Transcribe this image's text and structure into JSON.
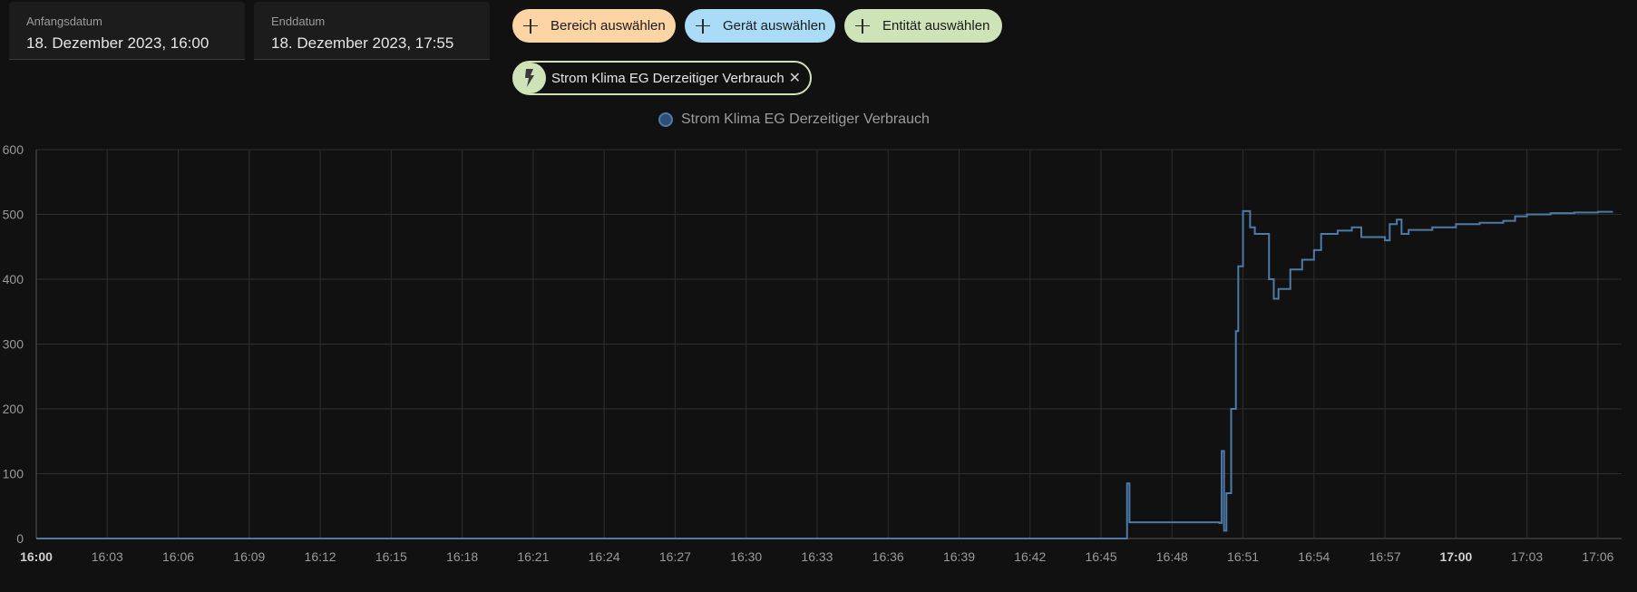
{
  "date_range": {
    "start_label": "Anfangsdatum",
    "start_value": "18. Dezember 2023, 16:00",
    "end_label": "Enddatum",
    "end_value": "18. Dezember 2023, 17:55"
  },
  "pickers": [
    {
      "label": "Bereich auswählen",
      "color": "#fdd4a3"
    },
    {
      "label": "Gerät auswählen",
      "color": "#aadcf7"
    },
    {
      "label": "Entität auswählen",
      "color": "#cfe3b8"
    }
  ],
  "selected_entity": {
    "label": "Strom Klima EG Derzeitiger Verbrauch",
    "icon": "flash-icon",
    "color": "#cfe3b8"
  },
  "chart_data": {
    "type": "line",
    "series": [
      {
        "name": "Strom Klima EG Derzeitiger Verbrauch",
        "color": "#4d7aa8",
        "points": [
          [
            "16:00",
            0
          ],
          [
            "16:46",
            0
          ],
          [
            "16:46.1",
            85
          ],
          [
            "16:46.2",
            25
          ],
          [
            "16:50",
            24
          ],
          [
            "16:50.1",
            135
          ],
          [
            "16:50.2",
            12
          ],
          [
            "16:50.3",
            70
          ],
          [
            "16:50.5",
            200
          ],
          [
            "16:50.7",
            320
          ],
          [
            "16:50.8",
            420
          ],
          [
            "16:51",
            505
          ],
          [
            "16:51.3",
            480
          ],
          [
            "16:51.5",
            470
          ],
          [
            "16:52",
            470
          ],
          [
            "16:52.1",
            400
          ],
          [
            "16:52.3",
            370
          ],
          [
            "16:52.5",
            385
          ],
          [
            "16:53",
            415
          ],
          [
            "16:53.5",
            430
          ],
          [
            "16:54",
            445
          ],
          [
            "16:54.3",
            470
          ],
          [
            "16:55",
            475
          ],
          [
            "16:55.6",
            480
          ],
          [
            "16:56",
            465
          ],
          [
            "16:57",
            460
          ],
          [
            "16:57.2",
            485
          ],
          [
            "16:57.5",
            492
          ],
          [
            "16:57.7",
            470
          ],
          [
            "16:58",
            476
          ],
          [
            "16:59",
            480
          ],
          [
            "17:00",
            485
          ],
          [
            "17:01",
            487
          ],
          [
            "17:02",
            490
          ],
          [
            "17:02.5",
            497
          ],
          [
            "17:03",
            500
          ],
          [
            "17:04",
            502
          ],
          [
            "17:05",
            503
          ],
          [
            "17:06",
            504
          ],
          [
            "17:06.6",
            505
          ]
        ]
      }
    ],
    "x_ticks": [
      "16:00",
      "16:03",
      "16:06",
      "16:09",
      "16:12",
      "16:15",
      "16:18",
      "16:21",
      "16:24",
      "16:27",
      "16:30",
      "16:33",
      "16:36",
      "16:39",
      "16:42",
      "16:45",
      "16:48",
      "16:51",
      "16:54",
      "16:57",
      "17:00",
      "17:03",
      "17:06"
    ],
    "x_bold_ticks": [
      "16:00",
      "17:00"
    ],
    "y_ticks": [
      0,
      100,
      200,
      300,
      400,
      500,
      600
    ],
    "ylim": [
      0,
      600
    ],
    "xlim": [
      "16:00",
      "17:07"
    ],
    "grid": true,
    "legend_position": "top-center"
  }
}
